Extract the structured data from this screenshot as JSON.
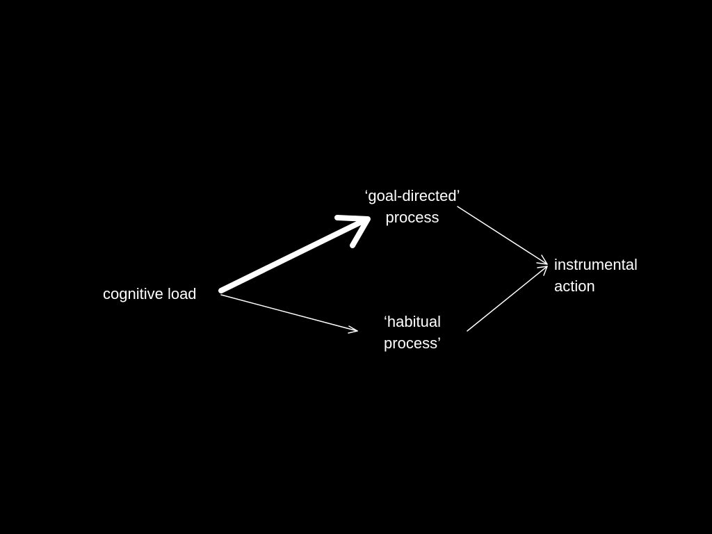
{
  "diagram": {
    "background_color": "#000000",
    "text_color": "#ffffff",
    "nodes": {
      "cognitive_load": {
        "line1": "cognitive load"
      },
      "goal_directed": {
        "line1": "‘goal-directed’",
        "line2": "process"
      },
      "habitual": {
        "line1": "‘habitual",
        "line2": "process’"
      },
      "instrumental_action": {
        "line1": "instrumental",
        "line2": "action"
      }
    },
    "edges": [
      {
        "from": "cognitive load",
        "to": "‘goal-directed’ process",
        "emphasis": "thick"
      },
      {
        "from": "cognitive load",
        "to": "‘habitual process’",
        "emphasis": "thin"
      },
      {
        "from": "‘goal-directed’ process",
        "to": "instrumental action",
        "emphasis": "thin"
      },
      {
        "from": "‘habitual process’",
        "to": "instrumental action",
        "emphasis": "thin"
      }
    ]
  }
}
